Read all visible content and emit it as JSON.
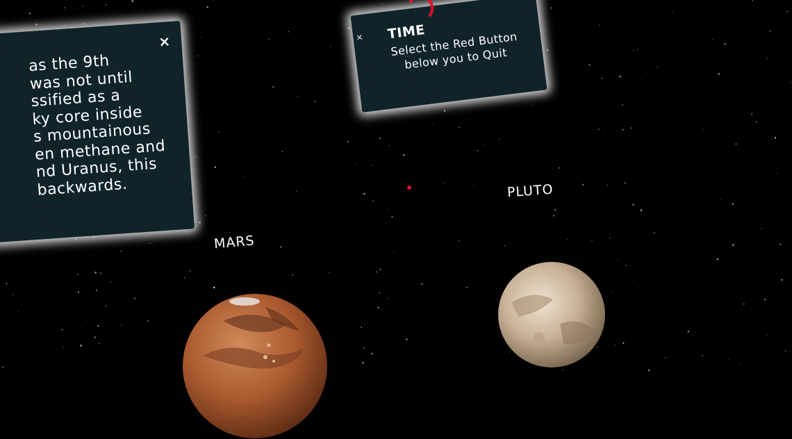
{
  "info_panel": {
    "close_label": "×",
    "lines": [
      "as the 9th",
      "was not until",
      "ssified as a",
      "ky core inside",
      "s mountainous",
      "en methane and",
      "nd Uranus, this",
      "backwards."
    ]
  },
  "time_panel": {
    "close_label": "×",
    "title": "TIME",
    "message_line1": "Select the Red Button",
    "message_line2": "below you to Quit"
  },
  "planets": {
    "mars": {
      "label": "MARS"
    },
    "pluto": {
      "label": "PLUTO"
    }
  },
  "colors": {
    "panel_bg": "#0f2329",
    "reticle": "#e0102a",
    "timer_arc": "#e0102a"
  }
}
